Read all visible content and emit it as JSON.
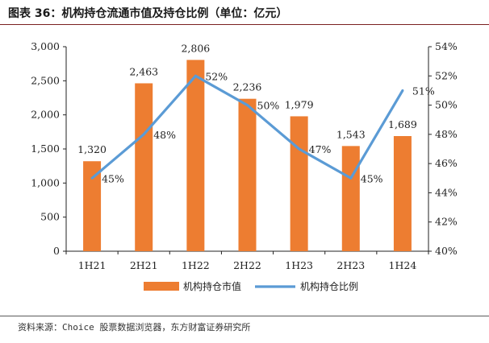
{
  "header": {
    "title": "图表 36：机构持仓流通市值及持仓比例（单位：亿元）"
  },
  "footer": {
    "source": "资料来源：Choice 股票数据浏览器，东方财富证券研究所"
  },
  "colors": {
    "bar": "#ED7D31",
    "line": "#5B9BD5",
    "axis": "#222222",
    "title_rule": "#7a1f1f"
  },
  "chart_data": {
    "type": "bar+line",
    "title": "机构持仓流通市值及持仓比例（单位：亿元）",
    "categories": [
      "1H21",
      "2H21",
      "1H22",
      "2H22",
      "1H23",
      "2H23",
      "1H24"
    ],
    "series": [
      {
        "name": "机构持仓市值",
        "type": "bar",
        "axis": "left",
        "values": [
          1320,
          2463,
          2806,
          2236,
          1979,
          1543,
          1689
        ],
        "labels": [
          "1,320",
          "2,463",
          "2,806",
          "2,236",
          "1,979",
          "1,543",
          "1,689"
        ]
      },
      {
        "name": "机构持仓比例",
        "type": "line",
        "axis": "right",
        "values": [
          45,
          48,
          52,
          50,
          47,
          45,
          51
        ],
        "labels": [
          "45%",
          "48%",
          "52%",
          "50%",
          "47%",
          "45%",
          "51%"
        ]
      }
    ],
    "left_axis": {
      "min": 0,
      "max": 3000,
      "step": 500,
      "tick_labels": [
        "0",
        "500",
        "1,000",
        "1,500",
        "2,000",
        "2,500",
        "3,000"
      ]
    },
    "right_axis": {
      "min": 40,
      "max": 54,
      "step": 2,
      "tick_labels": [
        "40%",
        "42%",
        "44%",
        "46%",
        "48%",
        "50%",
        "52%",
        "54%"
      ]
    },
    "legend": {
      "position": "bottom",
      "items": [
        "机构持仓市值",
        "机构持仓比例"
      ]
    },
    "grid": false
  }
}
